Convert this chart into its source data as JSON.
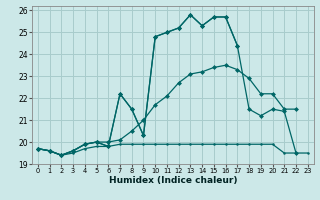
{
  "xlabel": "Humidex (Indice chaleur)",
  "bg_color": "#cce8e8",
  "grid_color": "#a8cccc",
  "line_color": "#006666",
  "xlim": [
    -0.5,
    23.5
  ],
  "ylim": [
    19,
    26.2
  ],
  "yticks": [
    19,
    20,
    21,
    22,
    23,
    24,
    25,
    26
  ],
  "xticks": [
    0,
    1,
    2,
    3,
    4,
    5,
    6,
    7,
    8,
    9,
    10,
    11,
    12,
    13,
    14,
    15,
    16,
    17,
    18,
    19,
    20,
    21,
    22,
    23
  ],
  "series0_x": [
    0,
    1,
    2,
    3,
    4,
    5,
    6,
    7,
    8,
    9,
    10,
    11,
    12,
    13,
    14,
    15,
    16,
    17,
    18,
    19,
    20,
    21,
    22,
    23
  ],
  "series0_y": [
    19.7,
    19.6,
    19.4,
    19.5,
    19.7,
    19.8,
    19.8,
    19.9,
    19.9,
    19.9,
    19.9,
    19.9,
    19.9,
    19.9,
    19.9,
    19.9,
    19.9,
    19.9,
    19.9,
    19.9,
    19.9,
    19.5,
    19.5,
    19.5
  ],
  "series1_x": [
    0,
    1,
    2,
    3,
    4,
    5,
    6,
    7,
    8,
    9,
    10,
    11,
    12,
    13,
    14,
    15,
    16,
    17,
    18,
    19,
    20,
    21,
    22
  ],
  "series1_y": [
    19.7,
    19.6,
    19.4,
    19.6,
    19.9,
    20.0,
    20.0,
    20.1,
    20.5,
    21.0,
    21.7,
    22.1,
    22.7,
    23.1,
    23.2,
    23.4,
    23.5,
    23.3,
    22.9,
    22.2,
    22.2,
    21.5,
    21.5
  ],
  "series2_x": [
    0,
    1,
    2,
    3,
    4,
    5,
    6,
    7,
    8,
    9,
    10,
    11,
    12,
    13,
    14,
    15,
    16,
    17,
    18,
    19,
    20,
    21,
    22
  ],
  "series2_y": [
    19.7,
    19.6,
    19.4,
    19.6,
    19.9,
    20.0,
    19.8,
    22.2,
    21.5,
    20.3,
    24.8,
    25.0,
    25.2,
    25.8,
    25.3,
    25.7,
    25.7,
    24.4,
    21.5,
    21.2,
    21.5,
    21.4,
    19.5
  ],
  "series3_x": [
    0,
    1,
    2,
    3,
    4,
    5,
    6,
    7,
    8,
    9,
    10,
    11,
    12,
    13,
    14,
    15,
    16,
    17
  ],
  "series3_y": [
    19.7,
    19.6,
    19.4,
    19.6,
    19.9,
    20.0,
    19.8,
    22.2,
    21.5,
    20.3,
    24.8,
    25.0,
    25.2,
    25.8,
    25.3,
    25.7,
    25.7,
    24.4
  ]
}
